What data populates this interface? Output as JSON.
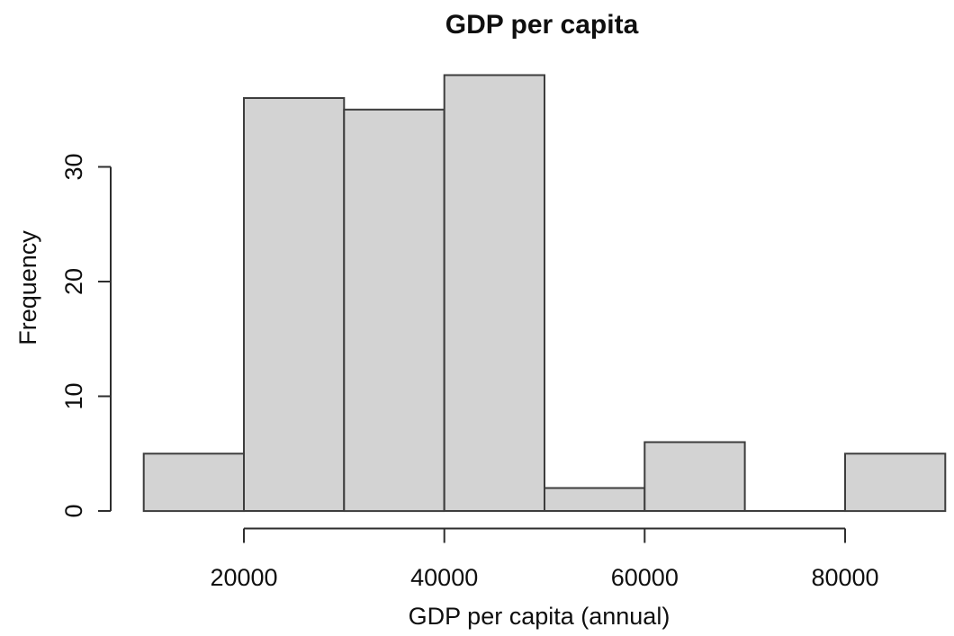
{
  "chart_data": {
    "type": "bar",
    "subtype": "histogram",
    "title": "GDP per capita",
    "xlabel": "GDP per capita (annual)",
    "ylabel": "Frequency",
    "bin_edges": [
      10000,
      20000,
      30000,
      40000,
      50000,
      60000,
      70000,
      80000,
      90000
    ],
    "values": [
      5,
      36,
      35,
      38,
      2,
      6,
      0,
      5
    ],
    "x_ticks": [
      20000,
      40000,
      60000,
      80000
    ],
    "y_ticks": [
      0,
      10,
      20,
      30
    ],
    "xlim": [
      10000,
      90000
    ],
    "ylim": [
      0,
      38
    ],
    "grid": false,
    "legend": null,
    "colors": {
      "bar_fill": "#d3d3d3",
      "bar_stroke": "#3d3d3d",
      "axis": "#2e2e2e",
      "text": "#0f0f0f",
      "background": "#ffffff"
    }
  }
}
